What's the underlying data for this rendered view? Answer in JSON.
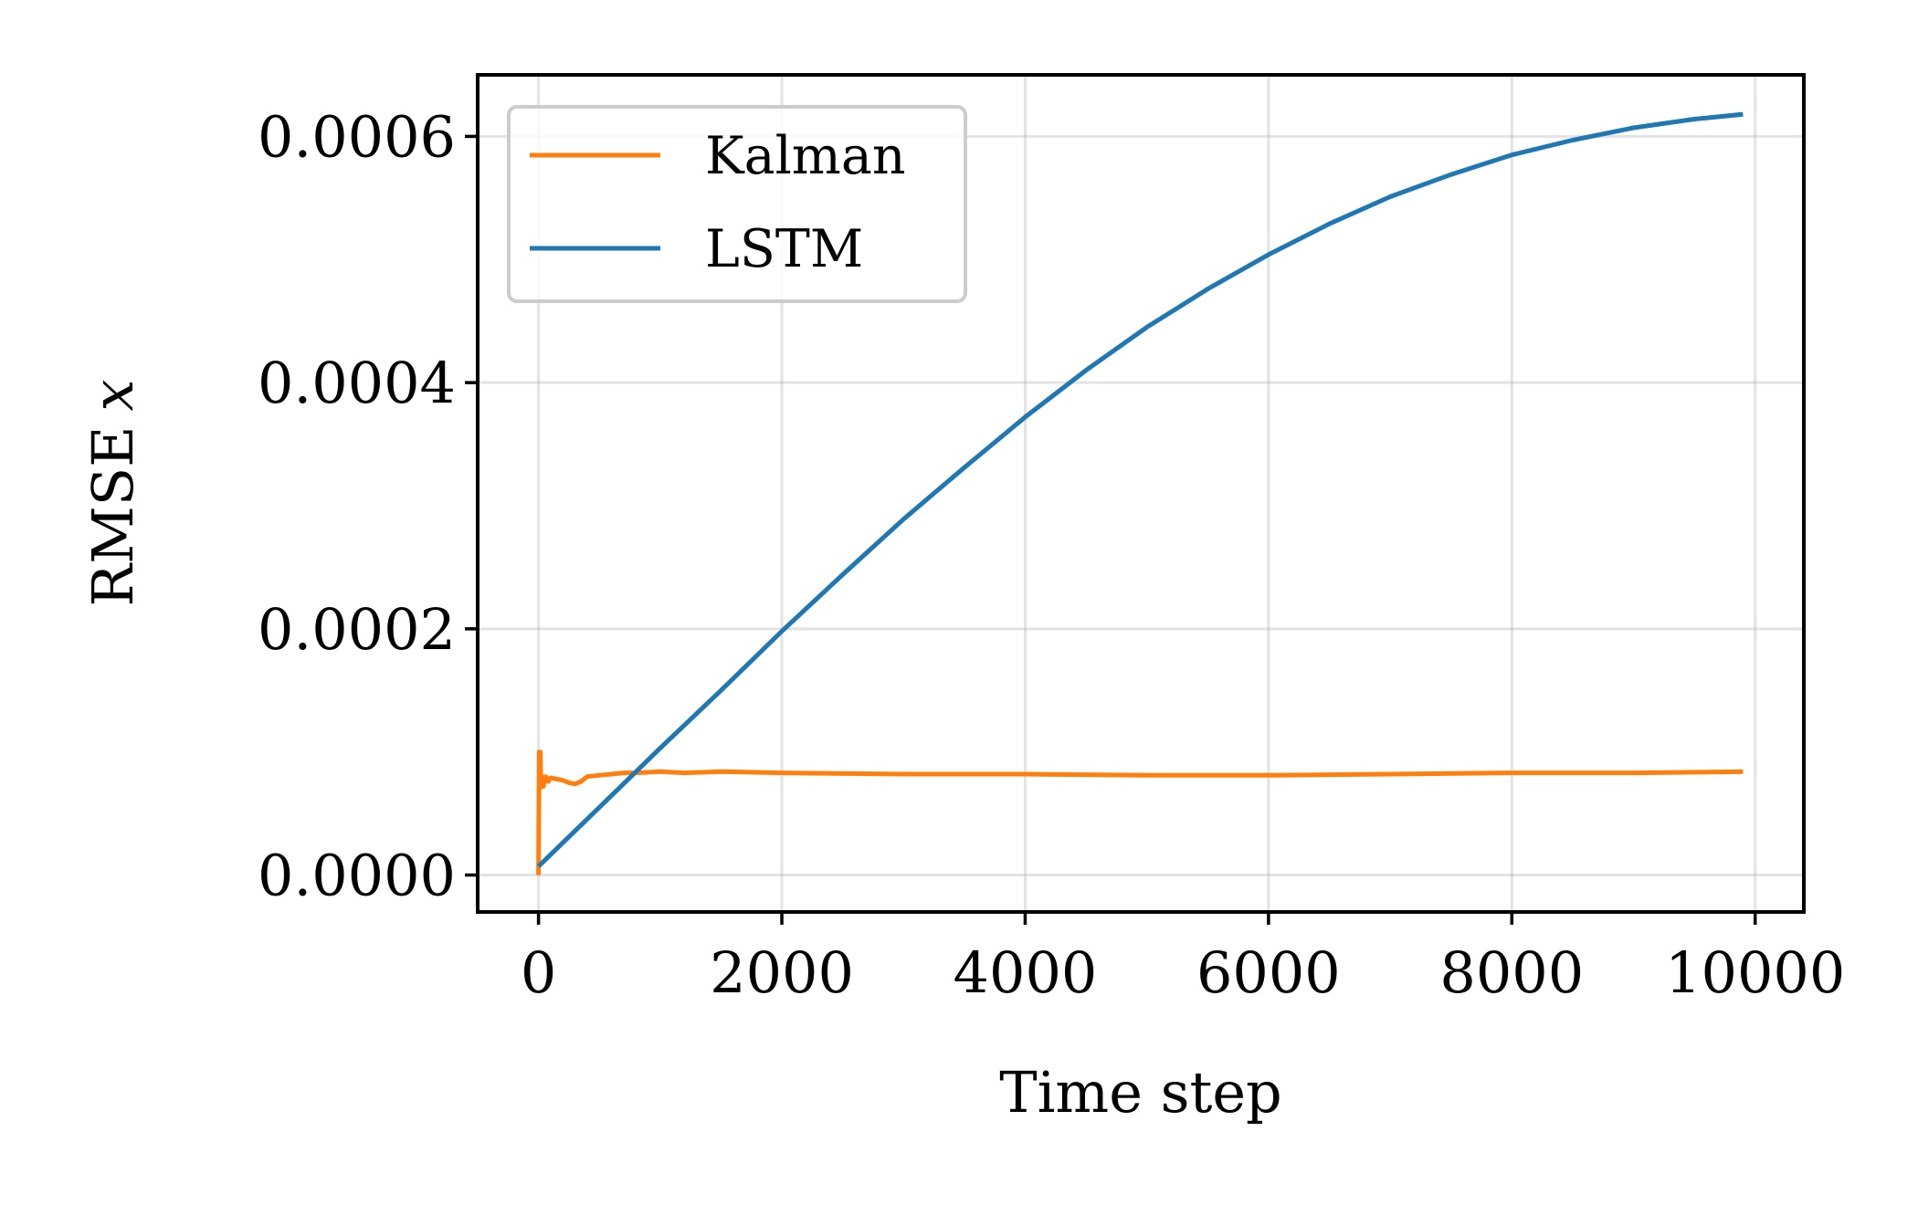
{
  "chart_data": {
    "type": "line",
    "xlabel": "Time step",
    "ylabel": "RMSE",
    "ylabel_symbol": "x",
    "xlim": [
      -500,
      10400
    ],
    "ylim": [
      -3e-05,
      0.00065
    ],
    "xticks": [
      0,
      2000,
      4000,
      6000,
      8000,
      10000
    ],
    "xtick_labels": [
      "0",
      "2000",
      "4000",
      "6000",
      "8000",
      "10000"
    ],
    "yticks": [
      0.0,
      0.0002,
      0.0004,
      0.0006
    ],
    "ytick_labels": [
      "0.0000",
      "0.0002",
      "0.0004",
      "0.0006"
    ],
    "grid": true,
    "legend_position": "top-left",
    "series": [
      {
        "name": "Kalman",
        "color": "#ff7f0e",
        "x": [
          0,
          5,
          10,
          15,
          20,
          30,
          40,
          50,
          60,
          80,
          100,
          150,
          200,
          250,
          300,
          350,
          400,
          500,
          600,
          700,
          800,
          1000,
          1200,
          1500,
          2000,
          3000,
          4000,
          5000,
          6000,
          7000,
          8000,
          9000,
          9900
        ],
        "y": [
          0.0,
          0.0001,
          7e-05,
          0.0001,
          7.5e-05,
          8e-05,
          7.2e-05,
          7.8e-05,
          8e-05,
          7.6e-05,
          7.9e-05,
          7.8e-05,
          7.7e-05,
          7.5e-05,
          7.4e-05,
          7.6e-05,
          8e-05,
          8.1e-05,
          8.2e-05,
          8.3e-05,
          8.3e-05,
          8.4e-05,
          8.3e-05,
          8.4e-05,
          8.3e-05,
          8.2e-05,
          8.2e-05,
          8.1e-05,
          8.1e-05,
          8.2e-05,
          8.3e-05,
          8.3e-05,
          8.4e-05
        ]
      },
      {
        "name": "LSTM",
        "color": "#1f77b4",
        "x": [
          0,
          500,
          1000,
          1500,
          2000,
          2500,
          3000,
          3500,
          4000,
          4500,
          5000,
          5500,
          6000,
          6500,
          7000,
          7500,
          8000,
          8500,
          9000,
          9500,
          9900
        ],
        "y": [
          7e-06,
          5.5e-05,
          0.000103,
          0.00015,
          0.000198,
          0.000244,
          0.000289,
          0.000331,
          0.000372,
          0.00041,
          0.000445,
          0.000476,
          0.000504,
          0.000529,
          0.000551,
          0.000569,
          0.000585,
          0.000597,
          0.000607,
          0.000614,
          0.000618
        ]
      }
    ]
  }
}
